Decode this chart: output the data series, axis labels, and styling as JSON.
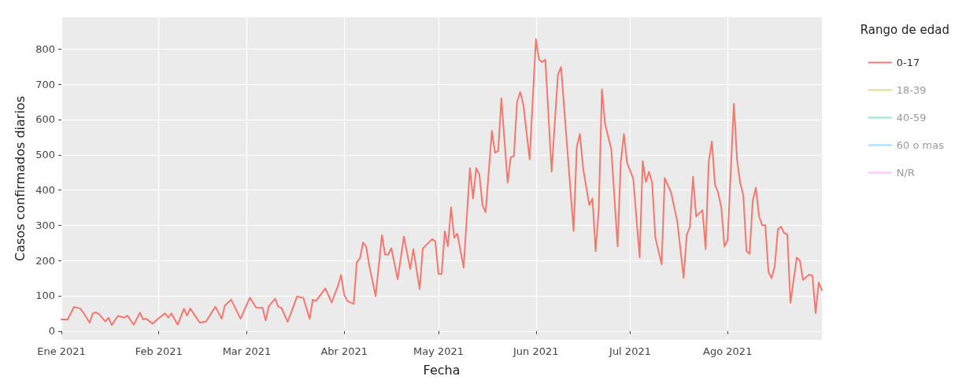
{
  "chart_data": {
    "type": "line",
    "xlabel": "Fecha",
    "ylabel": "Casos confirmados diarios",
    "legend_title": "Rango de edad",
    "legend": "top right",
    "grid": true,
    "marker": "none",
    "line_style": "solid",
    "xlim": [
      "2021-01-01",
      "2021-08-31"
    ],
    "xticks": [
      {
        "value": "2021-01-01",
        "label": "Ene 2021"
      },
      {
        "value": "2021-02-01",
        "label": "Feb 2021"
      },
      {
        "value": "2021-03-01",
        "label": "Mar 2021"
      },
      {
        "value": "2021-04-01",
        "label": "Abr 2021"
      },
      {
        "value": "2021-05-01",
        "label": "May 2021"
      },
      {
        "value": "2021-06-01",
        "label": "Jun 2021"
      },
      {
        "value": "2021-07-01",
        "label": "Jul 2021"
      },
      {
        "value": "2021-08-01",
        "label": "Ago 2021"
      }
    ],
    "ylim": [
      -25,
      890
    ],
    "yticks": [
      0,
      100,
      200,
      300,
      400,
      500,
      600,
      700,
      800
    ],
    "x": [
      "2021-01-01",
      "2021-01-03",
      "2021-01-05",
      "2021-01-07",
      "2021-01-08",
      "2021-01-10",
      "2021-01-11",
      "2021-01-12",
      "2021-01-13",
      "2021-01-15",
      "2021-01-16",
      "2021-01-17",
      "2021-01-19",
      "2021-01-21",
      "2021-01-22",
      "2021-01-24",
      "2021-01-26",
      "2021-01-27",
      "2021-01-28",
      "2021-01-30",
      "2021-02-01",
      "2021-02-03",
      "2021-02-04",
      "2021-02-05",
      "2021-02-07",
      "2021-02-09",
      "2021-02-10",
      "2021-02-11",
      "2021-02-14",
      "2021-02-16",
      "2021-02-18",
      "2021-02-19",
      "2021-02-21",
      "2021-02-22",
      "2021-02-24",
      "2021-02-27",
      "2021-03-02",
      "2021-03-04",
      "2021-03-06",
      "2021-03-07",
      "2021-03-08",
      "2021-03-10",
      "2021-03-11",
      "2021-03-12",
      "2021-03-14",
      "2021-03-17",
      "2021-03-19",
      "2021-03-21",
      "2021-03-22",
      "2021-03-23",
      "2021-03-26",
      "2021-03-28",
      "2021-03-30",
      "2021-03-31",
      "2021-04-01",
      "2021-04-02",
      "2021-04-04",
      "2021-04-05",
      "2021-04-06",
      "2021-04-07",
      "2021-04-08",
      "2021-04-09",
      "2021-04-11",
      "2021-04-13",
      "2021-04-14",
      "2021-04-15",
      "2021-04-16",
      "2021-04-18",
      "2021-04-20",
      "2021-04-22",
      "2021-04-23",
      "2021-04-25",
      "2021-04-26",
      "2021-04-27",
      "2021-04-29",
      "2021-04-30",
      "2021-05-01",
      "2021-05-02",
      "2021-05-03",
      "2021-05-04",
      "2021-05-05",
      "2021-05-06",
      "2021-05-07",
      "2021-05-09",
      "2021-05-11",
      "2021-05-12",
      "2021-05-13",
      "2021-05-14",
      "2021-05-15",
      "2021-05-16",
      "2021-05-18",
      "2021-05-19",
      "2021-05-20",
      "2021-05-21",
      "2021-05-23",
      "2021-05-24",
      "2021-05-25",
      "2021-05-26",
      "2021-05-27",
      "2021-05-28",
      "2021-05-30",
      "2021-06-01",
      "2021-06-02",
      "2021-06-03",
      "2021-06-04",
      "2021-06-06",
      "2021-06-08",
      "2021-06-09",
      "2021-06-10",
      "2021-06-13",
      "2021-06-14",
      "2021-06-15",
      "2021-06-16",
      "2021-06-18",
      "2021-06-19",
      "2021-06-20",
      "2021-06-21",
      "2021-06-22",
      "2021-06-23",
      "2021-06-25",
      "2021-06-27",
      "2021-06-28",
      "2021-06-29",
      "2021-06-30",
      "2021-07-02",
      "2021-07-04",
      "2021-07-05",
      "2021-07-06",
      "2021-07-07",
      "2021-07-08",
      "2021-07-09",
      "2021-07-11",
      "2021-07-12",
      "2021-07-14",
      "2021-07-16",
      "2021-07-18",
      "2021-07-19",
      "2021-07-20",
      "2021-07-21",
      "2021-07-22",
      "2021-07-24",
      "2021-07-25",
      "2021-07-26",
      "2021-07-27",
      "2021-07-28",
      "2021-07-29",
      "2021-07-30",
      "2021-07-31",
      "2021-08-01",
      "2021-08-03",
      "2021-08-04",
      "2021-08-05",
      "2021-08-06",
      "2021-08-07",
      "2021-08-08",
      "2021-08-09",
      "2021-08-10",
      "2021-08-11",
      "2021-08-12",
      "2021-08-13",
      "2021-08-14",
      "2021-08-15",
      "2021-08-16",
      "2021-08-17",
      "2021-08-18",
      "2021-08-19",
      "2021-08-20",
      "2021-08-21",
      "2021-08-23",
      "2021-08-24",
      "2021-08-25",
      "2021-08-27",
      "2021-08-28",
      "2021-08-29",
      "2021-08-30",
      "2021-08-31"
    ],
    "series": [
      {
        "name": "0-17",
        "color": "#f8766d",
        "values": [
          33,
          33,
          68,
          64,
          52,
          24,
          50,
          53,
          48,
          27,
          38,
          17,
          43,
          38,
          44,
          18,
          52,
          33,
          35,
          21,
          37,
          50,
          38,
          50,
          18,
          63,
          44,
          64,
          24,
          27,
          55,
          69,
          35,
          72,
          89,
          35,
          95,
          66,
          66,
          30,
          70,
          92,
          69,
          66,
          26,
          98,
          94,
          35,
          89,
          85,
          121,
          81,
          128,
          159,
          103,
          85,
          77,
          195,
          206,
          251,
          239,
          184,
          99,
          272,
          217,
          217,
          235,
          147,
          268,
          176,
          232,
          119,
          234,
          243,
          261,
          254,
          162,
          162,
          283,
          241,
          351,
          265,
          276,
          180,
          462,
          376,
          462,
          445,
          357,
          337,
          568,
          506,
          511,
          660,
          421,
          493,
          496,
          650,
          678,
          643,
          487,
          828,
          770,
          763,
          770,
          452,
          727,
          749,
          632,
          284,
          522,
          559,
          463,
          357,
          376,
          226,
          346,
          686,
          588,
          515,
          240,
          478,
          559,
          478,
          431,
          209,
          482,
          423,
          452,
          420,
          266,
          189,
          434,
          394,
          310,
          151,
          273,
          295,
          438,
          325,
          343,
          233,
          480,
          538,
          415,
          393,
          350,
          240,
          258,
          645,
          487,
          421,
          385,
          227,
          219,
          370,
          407,
          326,
          300,
          300,
          168,
          150,
          183,
          289,
          296,
          278,
          274,
          80,
          208,
          200,
          145,
          160,
          157,
          51,
          138,
          116
        ]
      },
      {
        "name": "18-39",
        "color": "#a3a500",
        "values": [
          null,
          null,
          null,
          null,
          null,
          null,
          null,
          null,
          null,
          null,
          null,
          null,
          null,
          null,
          null,
          null,
          null,
          null,
          null,
          null,
          null,
          null,
          null,
          null,
          null,
          null,
          null,
          null,
          null,
          null,
          null,
          null,
          null,
          null,
          null,
          null,
          null,
          null,
          null,
          null,
          null,
          null,
          null,
          null,
          null,
          null,
          null,
          null,
          null,
          null,
          null,
          null,
          null,
          null,
          null,
          null,
          null,
          null,
          null,
          null,
          null,
          null,
          null,
          null,
          null,
          null,
          null,
          null,
          null,
          null,
          null,
          null,
          null,
          null,
          null,
          null,
          null,
          null,
          null,
          null,
          null,
          null,
          null,
          null,
          null,
          null,
          null,
          null,
          null,
          null,
          null,
          null,
          null,
          null,
          null,
          null,
          null,
          null,
          null,
          null,
          null,
          null,
          null,
          null,
          null,
          null,
          null,
          null,
          null,
          null,
          null,
          null,
          null,
          null,
          null,
          null,
          null,
          null,
          null,
          null,
          null,
          null,
          null,
          null,
          null,
          null,
          null,
          null,
          null,
          null,
          null,
          null,
          null,
          null,
          null,
          null,
          null,
          null,
          null,
          null,
          null,
          null,
          null,
          null,
          null,
          null,
          null,
          null,
          null,
          null,
          null,
          null,
          null,
          null,
          null,
          null,
          null,
          null,
          null,
          null,
          null,
          null,
          null,
          null,
          null,
          null,
          null,
          null,
          null,
          null,
          null,
          null,
          null,
          null,
          null,
          null
        ]
      },
      {
        "name": "40-59",
        "color": "#00bf7d",
        "values": [
          null,
          null,
          null,
          null,
          null,
          null,
          null,
          null,
          null,
          null,
          null,
          null,
          null,
          null,
          null,
          null,
          null,
          null,
          null,
          null,
          null,
          null,
          null,
          null,
          null,
          null,
          null,
          null,
          null,
          null,
          null,
          null,
          null,
          null,
          null,
          null,
          null,
          null,
          null,
          null,
          null,
          null,
          null,
          null,
          null,
          null,
          null,
          null,
          null,
          null,
          null,
          null,
          null,
          null,
          null,
          null,
          null,
          null,
          null,
          null,
          null,
          null,
          null,
          null,
          null,
          null,
          null,
          null,
          null,
          null,
          null,
          null,
          null,
          null,
          null,
          null,
          null,
          null,
          null,
          null,
          null,
          null,
          null,
          null,
          null,
          null,
          null,
          null,
          null,
          null,
          null,
          null,
          null,
          null,
          null,
          null,
          null,
          null,
          null,
          null,
          null,
          null,
          null,
          null,
          null,
          null,
          null,
          null,
          null,
          null,
          null,
          null,
          null,
          null,
          null,
          null,
          null,
          null,
          null,
          null,
          null,
          null,
          null,
          null,
          null,
          null,
          null,
          null,
          null,
          null,
          null,
          null,
          null,
          null,
          null,
          null,
          null,
          null,
          null,
          null,
          null,
          null,
          null,
          null,
          null,
          null,
          null,
          null,
          null,
          null,
          null,
          null,
          null,
          null,
          null,
          null,
          null,
          null,
          null,
          null,
          null,
          null,
          null,
          null,
          null,
          null,
          null,
          null,
          null,
          null,
          null,
          null,
          null,
          null,
          null,
          null
        ]
      },
      {
        "name": "60 o mas",
        "color": "#00b0f6",
        "values": [
          null,
          null,
          null,
          null,
          null,
          null,
          null,
          null,
          null,
          null,
          null,
          null,
          null,
          null,
          null,
          null,
          null,
          null,
          null,
          null,
          null,
          null,
          null,
          null,
          null,
          null,
          null,
          null,
          null,
          null,
          null,
          null,
          null,
          null,
          null,
          null,
          null,
          null,
          null,
          null,
          null,
          null,
          null,
          null,
          null,
          null,
          null,
          null,
          null,
          null,
          null,
          null,
          null,
          null,
          null,
          null,
          null,
          null,
          null,
          null,
          null,
          null,
          null,
          null,
          null,
          null,
          null,
          null,
          null,
          null,
          null,
          null,
          null,
          null,
          null,
          null,
          null,
          null,
          null,
          null,
          null,
          null,
          null,
          null,
          null,
          null,
          null,
          null,
          null,
          null,
          null,
          null,
          null,
          null,
          null,
          null,
          null,
          null,
          null,
          null,
          null,
          null,
          null,
          null,
          null,
          null,
          null,
          null,
          null,
          null,
          null,
          null,
          null,
          null,
          null,
          null,
          null,
          null,
          null,
          null,
          null,
          null,
          null,
          null,
          null,
          null,
          null,
          null,
          null,
          null,
          null,
          null,
          null,
          null,
          null,
          null,
          null,
          null,
          null,
          null,
          null,
          null,
          null,
          null,
          null,
          null,
          null,
          null,
          null,
          null,
          null,
          null,
          null,
          null,
          null,
          null,
          null,
          null,
          null,
          null,
          null,
          null,
          null,
          null,
          null,
          null,
          null,
          null,
          null,
          null,
          null,
          null,
          null,
          null,
          null,
          null
        ]
      },
      {
        "name": "N/R",
        "color": "#e76bf3",
        "values": [
          null,
          null,
          null,
          null,
          null,
          null,
          null,
          null,
          null,
          null,
          null,
          null,
          null,
          null,
          null,
          null,
          null,
          null,
          null,
          null,
          null,
          null,
          null,
          null,
          null,
          null,
          null,
          null,
          null,
          null,
          null,
          null,
          null,
          null,
          null,
          null,
          null,
          null,
          null,
          null,
          null,
          null,
          null,
          null,
          null,
          null,
          null,
          null,
          null,
          null,
          null,
          null,
          null,
          null,
          null,
          null,
          null,
          null,
          null,
          null,
          null,
          null,
          null,
          null,
          null,
          null,
          null,
          null,
          null,
          null,
          null,
          null,
          null,
          null,
          null,
          null,
          null,
          null,
          null,
          null,
          null,
          null,
          null,
          null,
          null,
          null,
          null,
          null,
          null,
          null,
          null,
          null,
          null,
          null,
          null,
          null,
          null,
          null,
          null,
          null,
          null,
          null,
          null,
          null,
          null,
          null,
          null,
          null,
          null,
          null,
          null,
          null,
          null,
          null,
          null,
          null,
          null,
          null,
          null,
          null,
          null,
          null,
          null,
          null,
          null,
          null,
          null,
          null,
          null,
          null,
          null,
          null,
          null,
          null,
          null,
          null,
          null,
          null,
          null,
          null,
          null,
          null,
          null,
          null,
          null,
          null,
          null,
          null,
          null,
          null,
          null,
          null,
          null,
          null,
          null,
          null,
          null,
          null,
          null,
          null,
          null,
          null,
          null,
          null,
          null,
          null,
          null,
          null,
          null,
          null,
          null,
          null,
          null,
          null,
          null,
          null
        ]
      }
    ]
  }
}
